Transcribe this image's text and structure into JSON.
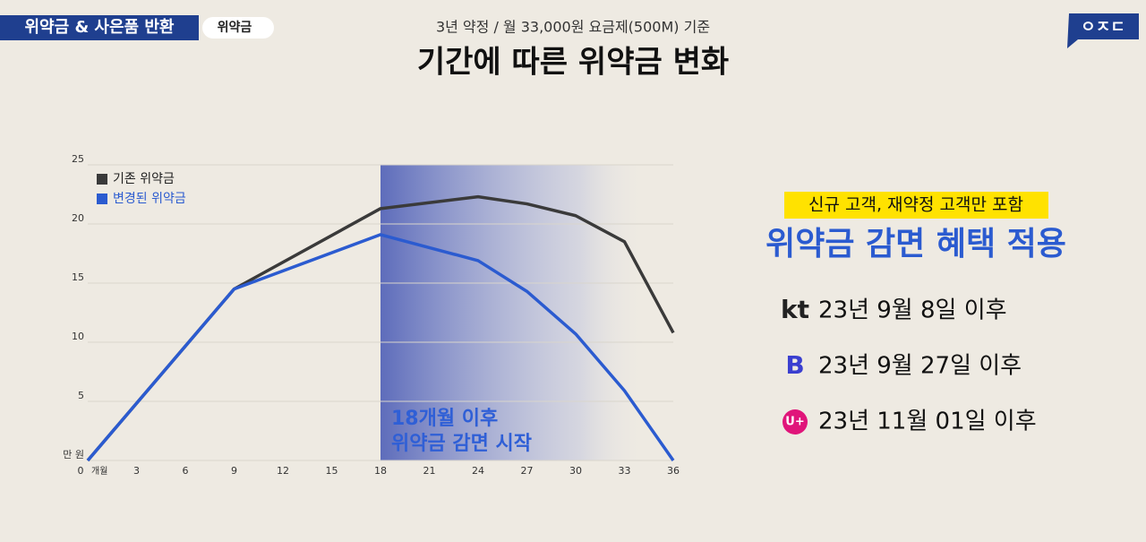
{
  "header": {
    "badge": "위약금 & 사은품 반환",
    "tag": "위약금",
    "logo": "ㅇㅈㄷ",
    "subtitle": "3년 약정 / 월 33,000원 요금제(500M) 기준",
    "title": "기간에 따른 위약금 변화"
  },
  "chart_data": {
    "type": "line",
    "x": [
      0,
      9,
      18,
      24,
      27,
      30,
      33,
      36
    ],
    "series": [
      {
        "name": "기존 위약금",
        "color": "#3a3a3a",
        "values": [
          0,
          14.5,
          21.3,
          22.3,
          21.7,
          20.7,
          18.5,
          10.8
        ]
      },
      {
        "name": "변경된 위약금",
        "color": "#2b5bd0",
        "values": [
          0,
          14.5,
          19.1,
          16.9,
          14.3,
          10.7,
          5.9,
          0
        ]
      }
    ],
    "xlim": [
      0,
      36
    ],
    "xticks": [
      0,
      3,
      6,
      9,
      12,
      15,
      18,
      21,
      24,
      27,
      30,
      33,
      36
    ],
    "x_unit": "개월",
    "ylim": [
      0,
      25
    ],
    "yticks": [
      {
        "value": 0,
        "label": "만 원"
      },
      5,
      10,
      15,
      20,
      25
    ],
    "grid": true,
    "legend": "upper left",
    "highlight_from": 18,
    "annotation": [
      "18개월 이후",
      "위약금 감면 시작"
    ]
  },
  "panel": {
    "note": "신규 고객, 재약정 고객만 포함",
    "headline": "위약금 감면 혜택 적용",
    "carriers": [
      {
        "logo": "kt",
        "date": "23년 9월 8일 이후"
      },
      {
        "logo": "B",
        "date": "23년 9월 27일 이후"
      },
      {
        "logo": "U+",
        "date": "23년 11월 01일 이후"
      }
    ]
  }
}
